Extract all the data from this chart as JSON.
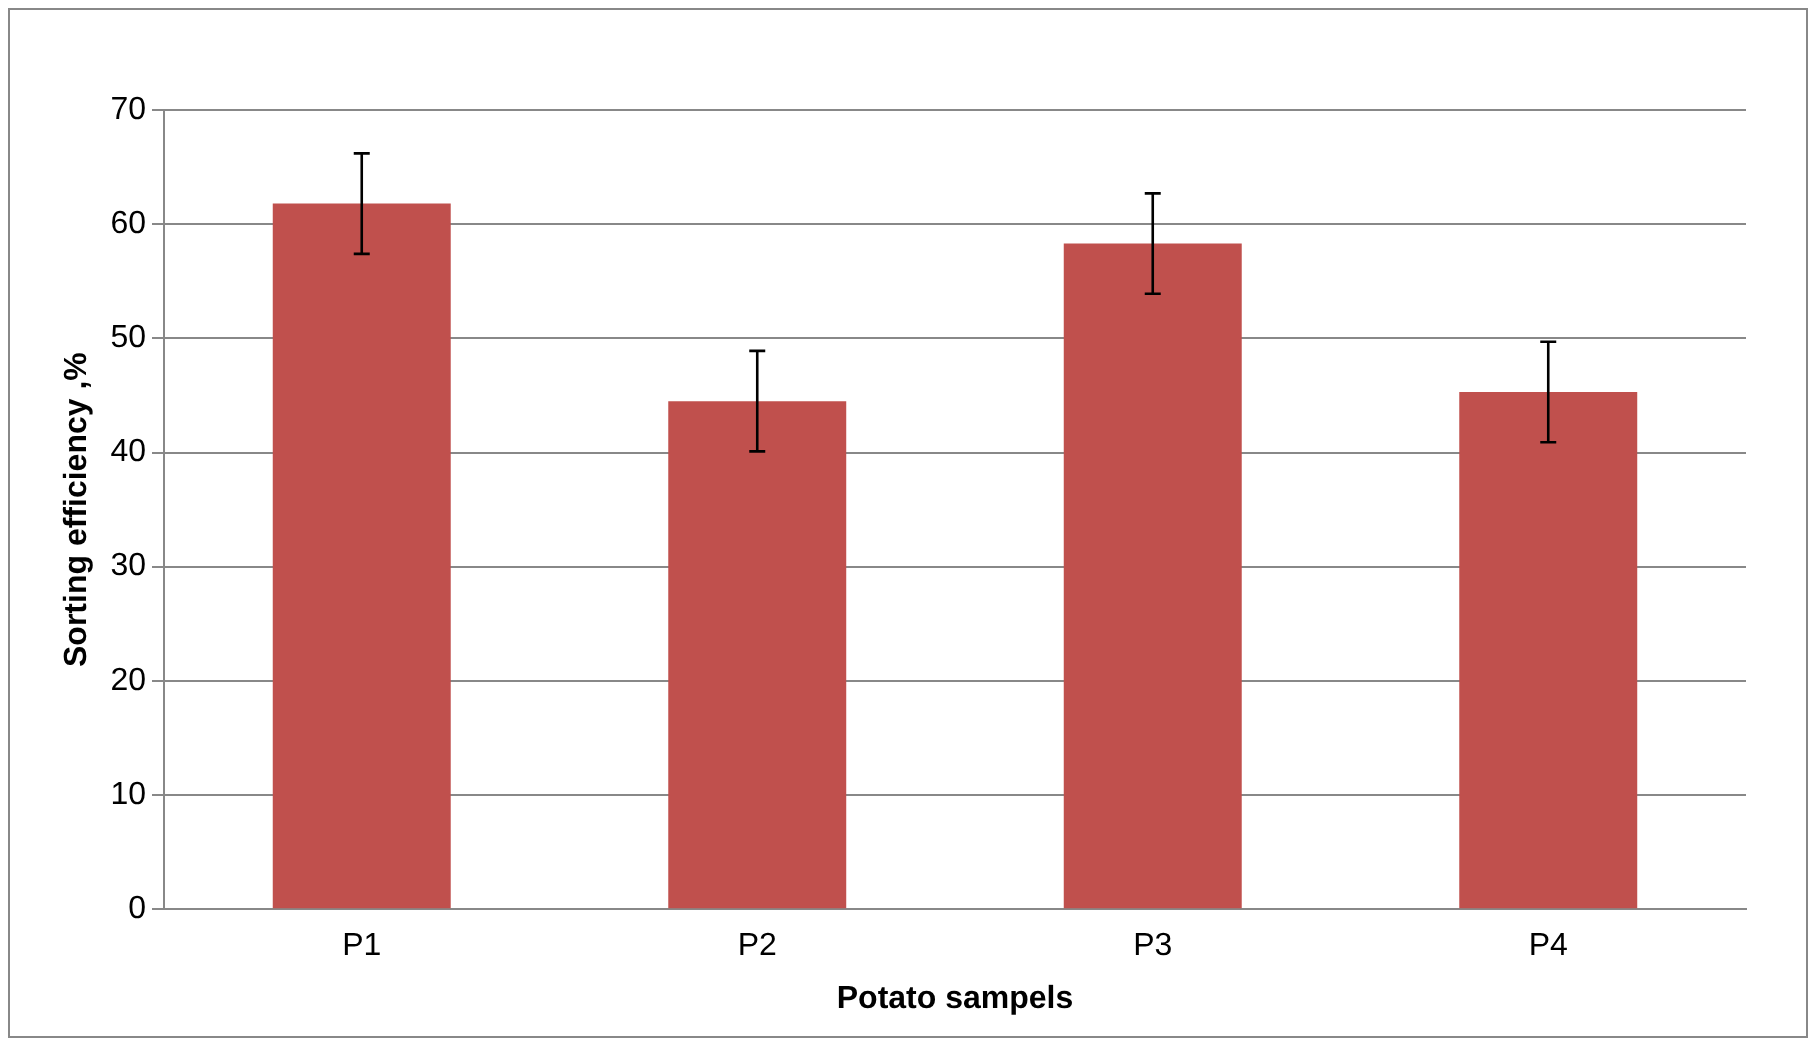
{
  "chart_data": {
    "type": "bar",
    "xlabel": "Potato sampels",
    "ylabel": "Sorting efficiency ,%",
    "categories": [
      "P1",
      "P2",
      "P3",
      "P4"
    ],
    "values": [
      61.8,
      44.5,
      58.3,
      45.3
    ],
    "errors": [
      4.4,
      4.4,
      4.4,
      4.4
    ],
    "color": "#c0504d",
    "ylim": [
      0,
      70
    ],
    "yticks": [
      0,
      10,
      20,
      30,
      40,
      50,
      60,
      70
    ],
    "grid": "y",
    "legend": false
  }
}
